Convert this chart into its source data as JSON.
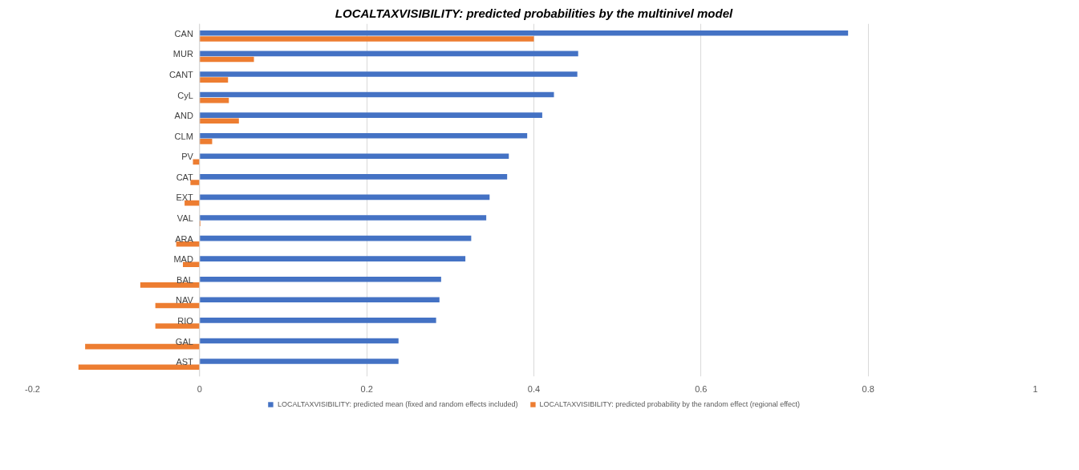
{
  "chart_data": {
    "type": "bar",
    "orientation": "horizontal",
    "title": "LOCALTAXVISIBILITY: predicted probabilities by the multinivel model",
    "categories": [
      "CAN",
      "MUR",
      "CANT",
      "CyL",
      "AND",
      "CLM",
      "PV",
      "CAT",
      "EXT",
      "VAL",
      "ARA",
      "MAD",
      "BAL",
      "NAV",
      "RIO",
      "GAL",
      "AST"
    ],
    "series": [
      {
        "name": "LOCALTAXVISIBILITY: predicted mean (fixed and random effects included)",
        "color": "#4472c4",
        "values": [
          0.776,
          0.453,
          0.452,
          0.424,
          0.41,
          0.392,
          0.37,
          0.368,
          0.347,
          0.343,
          0.325,
          0.318,
          0.289,
          0.287,
          0.283,
          0.238,
          0.238
        ]
      },
      {
        "name": "LOCALTAXVISIBILITY: predicted probability by the random effect (regional effect)",
        "color": "#ed7d31",
        "values": [
          0.4,
          0.065,
          0.034,
          0.035,
          0.047,
          0.015,
          -0.008,
          -0.011,
          -0.018,
          0.001,
          -0.028,
          -0.02,
          -0.071,
          -0.053,
          -0.053,
          -0.137,
          -0.145
        ]
      }
    ],
    "xlim": [
      -0.2,
      1
    ],
    "xticks": [
      -0.2,
      0,
      0.2,
      0.4,
      0.6,
      0.8,
      1
    ],
    "grid": "x",
    "legend": "bottom"
  }
}
